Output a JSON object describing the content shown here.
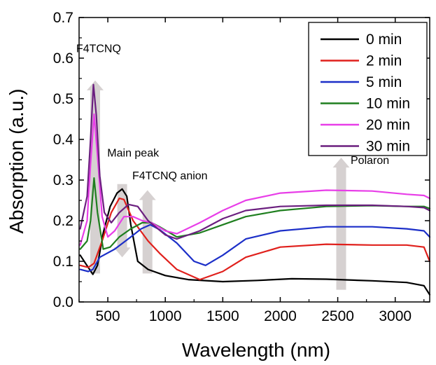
{
  "chart_data": {
    "type": "line",
    "xlabel": "Wavelength (nm)",
    "ylabel": "Absorption (a.u.)",
    "xlim": [
      250,
      3300
    ],
    "ylim": [
      0.0,
      0.7
    ],
    "x_ticks": [
      500,
      1000,
      1500,
      2000,
      2500,
      3000
    ],
    "x_tick_labels": [
      "500",
      "1000",
      "1500",
      "2000",
      "2500",
      "3000"
    ],
    "y_ticks": [
      0.0,
      0.1,
      0.2,
      0.3,
      0.4,
      0.5,
      0.6,
      0.7
    ],
    "y_tick_labels": [
      "0.0",
      "0.1",
      "0.2",
      "0.3",
      "0.4",
      "0.5",
      "0.6",
      "0.7"
    ],
    "grid": false,
    "legend_position": "top-right",
    "series": [
      {
        "name": "0 min",
        "color": "#000000",
        "points": [
          [
            260,
            0.115
          ],
          [
            330,
            0.085
          ],
          [
            370,
            0.068
          ],
          [
            410,
            0.09
          ],
          [
            460,
            0.17
          ],
          [
            520,
            0.235
          ],
          [
            580,
            0.268
          ],
          [
            625,
            0.278
          ],
          [
            665,
            0.26
          ],
          [
            700,
            0.19
          ],
          [
            760,
            0.1
          ],
          [
            850,
            0.08
          ],
          [
            1000,
            0.065
          ],
          [
            1200,
            0.055
          ],
          [
            1500,
            0.05
          ],
          [
            1800,
            0.053
          ],
          [
            2100,
            0.057
          ],
          [
            2400,
            0.056
          ],
          [
            2800,
            0.052
          ],
          [
            3100,
            0.048
          ],
          [
            3250,
            0.04
          ],
          [
            3300,
            0.018
          ]
        ]
      },
      {
        "name": "2 min",
        "color": "#e0201c",
        "points": [
          [
            260,
            0.09
          ],
          [
            330,
            0.085
          ],
          [
            380,
            0.095
          ],
          [
            450,
            0.15
          ],
          [
            530,
            0.22
          ],
          [
            600,
            0.255
          ],
          [
            640,
            0.252
          ],
          [
            720,
            0.2
          ],
          [
            850,
            0.15
          ],
          [
            950,
            0.12
          ],
          [
            1100,
            0.08
          ],
          [
            1300,
            0.055
          ],
          [
            1500,
            0.075
          ],
          [
            1700,
            0.11
          ],
          [
            2000,
            0.135
          ],
          [
            2400,
            0.142
          ],
          [
            2800,
            0.14
          ],
          [
            3100,
            0.14
          ],
          [
            3250,
            0.135
          ],
          [
            3300,
            0.1
          ]
        ]
      },
      {
        "name": "5 min",
        "color": "#1c2fc8",
        "points": [
          [
            260,
            0.08
          ],
          [
            330,
            0.075
          ],
          [
            370,
            0.08
          ],
          [
            430,
            0.11
          ],
          [
            560,
            0.13
          ],
          [
            700,
            0.16
          ],
          [
            790,
            0.18
          ],
          [
            870,
            0.19
          ],
          [
            950,
            0.178
          ],
          [
            1100,
            0.145
          ],
          [
            1250,
            0.1
          ],
          [
            1350,
            0.09
          ],
          [
            1500,
            0.115
          ],
          [
            1700,
            0.155
          ],
          [
            2000,
            0.175
          ],
          [
            2400,
            0.185
          ],
          [
            2800,
            0.185
          ],
          [
            3100,
            0.18
          ],
          [
            3250,
            0.175
          ],
          [
            3300,
            0.16
          ]
        ]
      },
      {
        "name": "10 min",
        "color": "#1f7f1f",
        "points": [
          [
            260,
            0.13
          ],
          [
            320,
            0.15
          ],
          [
            350,
            0.2
          ],
          [
            380,
            0.305
          ],
          [
            410,
            0.22
          ],
          [
            460,
            0.13
          ],
          [
            520,
            0.135
          ],
          [
            600,
            0.16
          ],
          [
            700,
            0.18
          ],
          [
            800,
            0.195
          ],
          [
            880,
            0.195
          ],
          [
            950,
            0.185
          ],
          [
            1100,
            0.16
          ],
          [
            1300,
            0.17
          ],
          [
            1500,
            0.19
          ],
          [
            1700,
            0.21
          ],
          [
            2000,
            0.225
          ],
          [
            2400,
            0.235
          ],
          [
            2800,
            0.237
          ],
          [
            3100,
            0.235
          ],
          [
            3250,
            0.235
          ],
          [
            3300,
            0.23
          ]
        ]
      },
      {
        "name": "20 min",
        "color": "#e83ee8",
        "points": [
          [
            260,
            0.14
          ],
          [
            320,
            0.2
          ],
          [
            350,
            0.34
          ],
          [
            380,
            0.462
          ],
          [
            410,
            0.36
          ],
          [
            450,
            0.21
          ],
          [
            500,
            0.16
          ],
          [
            560,
            0.175
          ],
          [
            640,
            0.21
          ],
          [
            720,
            0.21
          ],
          [
            800,
            0.2
          ],
          [
            880,
            0.195
          ],
          [
            1000,
            0.175
          ],
          [
            1100,
            0.168
          ],
          [
            1300,
            0.195
          ],
          [
            1500,
            0.225
          ],
          [
            1700,
            0.25
          ],
          [
            2000,
            0.268
          ],
          [
            2400,
            0.275
          ],
          [
            2800,
            0.273
          ],
          [
            3100,
            0.265
          ],
          [
            3250,
            0.262
          ],
          [
            3300,
            0.255
          ]
        ]
      },
      {
        "name": "30 min",
        "color": "#6b1f7f",
        "points": [
          [
            260,
            0.18
          ],
          [
            320,
            0.26
          ],
          [
            350,
            0.4
          ],
          [
            375,
            0.535
          ],
          [
            400,
            0.46
          ],
          [
            430,
            0.31
          ],
          [
            470,
            0.22
          ],
          [
            530,
            0.195
          ],
          [
            600,
            0.22
          ],
          [
            680,
            0.24
          ],
          [
            760,
            0.235
          ],
          [
            850,
            0.2
          ],
          [
            1000,
            0.165
          ],
          [
            1100,
            0.155
          ],
          [
            1300,
            0.175
          ],
          [
            1500,
            0.205
          ],
          [
            1700,
            0.225
          ],
          [
            2000,
            0.235
          ],
          [
            2400,
            0.238
          ],
          [
            2800,
            0.238
          ],
          [
            3100,
            0.235
          ],
          [
            3250,
            0.232
          ],
          [
            3300,
            0.225
          ]
        ]
      }
    ],
    "annotations": [
      {
        "text": "F4TCNQ",
        "x": 420,
        "y": 0.615,
        "arrow": {
          "x": 390,
          "y_from": 0.07,
          "y_to": 0.545,
          "direction": "up"
        }
      },
      {
        "text": "Main peak",
        "x": 720,
        "y": 0.358,
        "arrow": {
          "x": 625,
          "y_from": 0.29,
          "y_to": 0.11,
          "direction": "down"
        }
      },
      {
        "text": "F4TCNQ anion",
        "x": 1040,
        "y": 0.302,
        "arrow": {
          "x": 845,
          "y_from": 0.07,
          "y_to": 0.275,
          "direction": "up"
        }
      },
      {
        "text": "Polaron",
        "x": 2780,
        "y": 0.34,
        "arrow": {
          "x": 2530,
          "y_from": 0.03,
          "y_to": 0.355,
          "direction": "up"
        }
      }
    ]
  }
}
